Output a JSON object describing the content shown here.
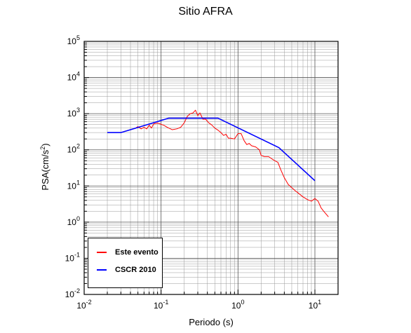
{
  "chart_data": {
    "type": "line",
    "title": "Sitio AFRA",
    "xlabel": "Periodo (s)",
    "ylabel_base": "PSA(cm/s",
    "ylabel_sup": "2",
    "ylabel_end": ")",
    "x_scale": "log",
    "y_scale": "log",
    "xlim": [
      0.01,
      20
    ],
    "ylim": [
      0.01,
      100000
    ],
    "grid": true,
    "legend_position": "bottom-left",
    "x_ticks": [
      {
        "value": 0.01,
        "base": "10",
        "exp": "-2"
      },
      {
        "value": 0.1,
        "base": "10",
        "exp": "-1"
      },
      {
        "value": 1,
        "base": "10",
        "exp": "0"
      },
      {
        "value": 10,
        "base": "10",
        "exp": "1"
      }
    ],
    "y_ticks": [
      {
        "value": 0.01,
        "base": "10",
        "exp": "-2"
      },
      {
        "value": 0.1,
        "base": "10",
        "exp": "-1"
      },
      {
        "value": 1,
        "base": "10",
        "exp": "0"
      },
      {
        "value": 10,
        "base": "10",
        "exp": "1"
      },
      {
        "value": 100,
        "base": "10",
        "exp": "2"
      },
      {
        "value": 1000,
        "base": "10",
        "exp": "3"
      },
      {
        "value": 10000,
        "base": "10",
        "exp": "4"
      },
      {
        "value": 100000,
        "base": "10",
        "exp": "5"
      }
    ],
    "series": [
      {
        "name": "Este evento",
        "color": "#ff0000",
        "x": [
          0.045,
          0.05,
          0.055,
          0.06,
          0.065,
          0.07,
          0.075,
          0.08,
          0.09,
          0.1,
          0.11,
          0.12,
          0.14,
          0.16,
          0.18,
          0.2,
          0.22,
          0.24,
          0.26,
          0.28,
          0.3,
          0.32,
          0.35,
          0.38,
          0.42,
          0.45,
          0.5,
          0.55,
          0.6,
          0.65,
          0.7,
          0.75,
          0.8,
          0.9,
          1.0,
          1.1,
          1.2,
          1.3,
          1.4,
          1.5,
          1.7,
          1.9,
          2.0,
          2.2,
          2.5,
          2.8,
          3.0,
          3.3,
          3.6,
          4.0,
          4.5,
          5.0,
          5.5,
          6.0,
          7.0,
          8.0,
          9.0,
          10.0,
          11.0,
          12.0,
          13.0,
          15.0
        ],
        "y": [
          380,
          440,
          380,
          420,
          380,
          480,
          400,
          520,
          550,
          510,
          470,
          420,
          360,
          380,
          420,
          560,
          850,
          1000,
          1050,
          1250,
          880,
          1050,
          700,
          700,
          550,
          500,
          400,
          350,
          300,
          250,
          270,
          210,
          210,
          200,
          280,
          280,
          180,
          140,
          150,
          130,
          120,
          100,
          70,
          65,
          65,
          55,
          50,
          45,
          28,
          17,
          11,
          9,
          7.5,
          6.5,
          5,
          4.2,
          3.8,
          4.5,
          3.8,
          2.5,
          2.0,
          1.4
        ]
      },
      {
        "name": "CSCR 2010",
        "color": "#0000ff",
        "x": [
          0.02,
          0.03,
          0.125,
          0.55,
          3.4,
          10.0
        ],
        "y": [
          300,
          300,
          750,
          750,
          115,
          14
        ]
      }
    ]
  }
}
